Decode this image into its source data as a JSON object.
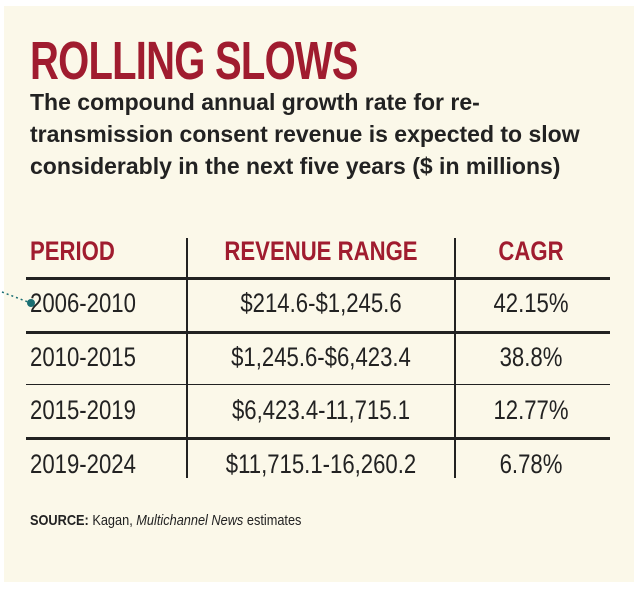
{
  "header": {
    "title": "ROLLING SLOWS",
    "subtitle": "The compound annual growth rate for re-transmission consent revenue is expected to slow considerably in the next five years ($ in millions)"
  },
  "table": {
    "columns": [
      "PERIOD",
      "REVENUE RANGE",
      "CAGR"
    ],
    "rows": [
      [
        "2006-2010",
        "$214.6-$1,245.6",
        "42.15%"
      ],
      [
        "2010-2015",
        "$1,245.6-$6,423.4",
        "38.8%"
      ],
      [
        "2015-2019",
        "$6,423.4-11,715.1",
        "12.77%"
      ],
      [
        "2019-2024",
        "$11,715.1-16,260.2",
        "6.78%"
      ]
    ]
  },
  "source": {
    "label": "SOURCE:",
    "text": "Kagan,",
    "publication": "Multichannel News",
    "suffix": "estimates"
  }
}
